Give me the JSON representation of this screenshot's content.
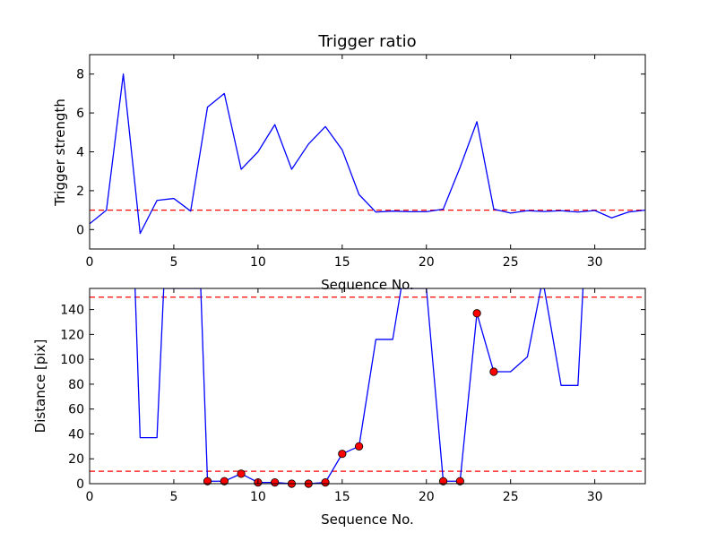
{
  "chart_data": [
    {
      "type": "line",
      "title": "Trigger ratio",
      "xlabel": "Sequence No.",
      "ylabel": "Trigger strength",
      "xlim": [
        0,
        33
      ],
      "ylim": [
        -1,
        9
      ],
      "xticks": [
        0,
        5,
        10,
        15,
        20,
        25,
        30
      ],
      "yticks": [
        0,
        2,
        4,
        6,
        8
      ],
      "grid": false,
      "series": [
        {
          "color": "#0000ff",
          "x": [
            0,
            1,
            2,
            3,
            4,
            5,
            6,
            7,
            8,
            9,
            10,
            11,
            12,
            13,
            14,
            15,
            16,
            17,
            18,
            19,
            20,
            21,
            22,
            23,
            24,
            25,
            26,
            27,
            28,
            29,
            30,
            31,
            32,
            33
          ],
          "y": [
            0.3,
            1.0,
            8.0,
            -0.2,
            1.5,
            1.6,
            0.95,
            6.3,
            7.0,
            3.1,
            4.0,
            5.4,
            3.1,
            4.4,
            5.3,
            4.1,
            1.8,
            0.9,
            0.95,
            0.92,
            0.92,
            1.05,
            3.2,
            5.55,
            1.05,
            0.85,
            0.97,
            0.93,
            0.97,
            0.9,
            0.98,
            0.6,
            0.9,
            1.0
          ]
        }
      ],
      "reference_lines": [
        {
          "y": 1.0,
          "color": "#ff0000",
          "style": "dashed"
        }
      ]
    },
    {
      "type": "line",
      "title": "",
      "xlabel": "Sequence No.",
      "ylabel": "Distance [pix]",
      "xlim": [
        0,
        33
      ],
      "ylim": [
        0,
        157
      ],
      "xticks": [
        0,
        5,
        10,
        15,
        20,
        25,
        30
      ],
      "yticks": [
        0,
        20,
        40,
        60,
        80,
        100,
        120,
        140
      ],
      "grid": false,
      "series": [
        {
          "color": "#0000ff",
          "x": [
            2.7,
            3,
            4,
            4.4,
            6.6,
            7,
            8,
            9,
            10,
            11,
            12,
            13,
            14,
            15,
            16,
            17,
            18,
            18.5,
            19.5,
            20,
            21,
            22,
            23,
            24,
            25,
            26,
            26.8,
            27,
            28,
            29,
            29.3
          ],
          "y": [
            157,
            37,
            37,
            157,
            157,
            2,
            2,
            8,
            1,
            1,
            0,
            0,
            1,
            24,
            30,
            116,
            116,
            157,
            157,
            157,
            2,
            2,
            137,
            90,
            90,
            102,
            157,
            157,
            79,
            79,
            157
          ]
        }
      ],
      "markers": {
        "color": "#ff0000",
        "x": [
          7,
          8,
          9,
          10,
          11,
          12,
          13,
          14,
          15,
          16,
          21,
          22,
          23,
          24
        ],
        "y": [
          2,
          2,
          8,
          1,
          1,
          0,
          0,
          1,
          24,
          30,
          2,
          2,
          137,
          90
        ]
      },
      "reference_lines": [
        {
          "y": 150,
          "color": "#ff0000",
          "style": "dashed"
        },
        {
          "y": 10,
          "color": "#ff0000",
          "style": "dashed"
        }
      ]
    }
  ]
}
